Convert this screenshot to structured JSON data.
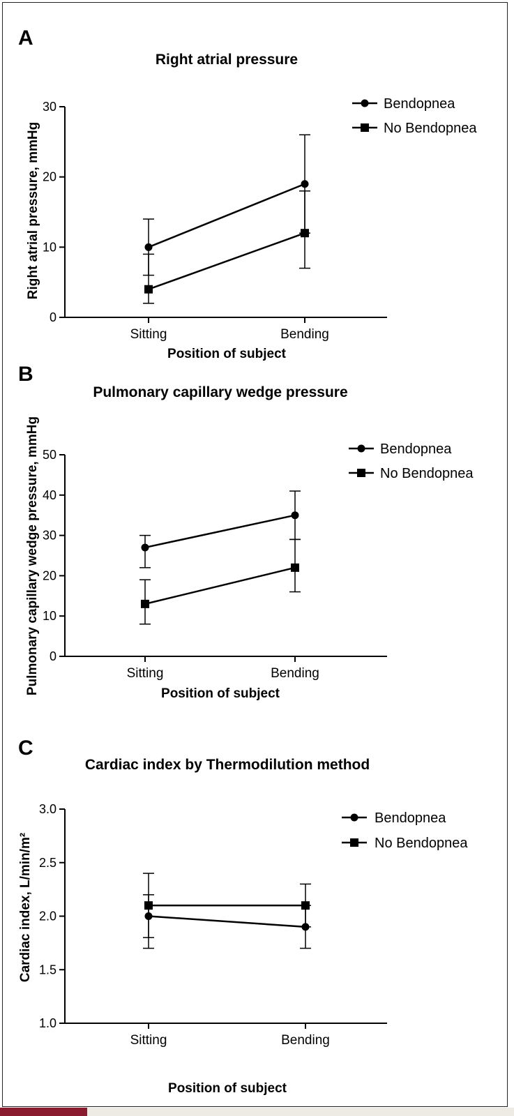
{
  "colors": {
    "line": "#000000",
    "accent_bar": "#8a1a2e",
    "footer_bar": "#eeeae4"
  },
  "chart_data": [
    {
      "type": "line",
      "panel": "A",
      "title": "Right atrial pressure",
      "xlabel": "Position of subject",
      "ylabel": "Right atrial pressure, mmHg",
      "categories": [
        "Sitting",
        "Bending"
      ],
      "ylim": [
        0,
        30
      ],
      "yticks": [
        "0",
        "10",
        "20",
        "30"
      ],
      "legend_position": "top-right",
      "grid": false,
      "series": [
        {
          "name": "Bendopnea",
          "marker": "circle",
          "values": [
            10,
            19
          ],
          "err_low": [
            6,
            12
          ],
          "err_high": [
            14,
            26
          ]
        },
        {
          "name": "No Bendopnea",
          "marker": "square",
          "values": [
            4,
            12
          ],
          "err_low": [
            2,
            7
          ],
          "err_high": [
            9,
            18
          ]
        }
      ]
    },
    {
      "type": "line",
      "panel": "B",
      "title": "Pulmonary capillary wedge pressure",
      "xlabel": "Position of subject",
      "ylabel": "Pulmonary capillary wedge pressure, mmHg",
      "categories": [
        "Sitting",
        "Bending"
      ],
      "ylim": [
        0,
        50
      ],
      "yticks": [
        "0",
        "10",
        "20",
        "30",
        "40",
        "50"
      ],
      "legend_position": "top-right",
      "grid": false,
      "series": [
        {
          "name": "Bendopnea",
          "marker": "circle",
          "values": [
            27,
            35
          ],
          "err_low": [
            22,
            29
          ],
          "err_high": [
            30,
            41
          ]
        },
        {
          "name": "No Bendopnea",
          "marker": "square",
          "values": [
            13,
            22
          ],
          "err_low": [
            8,
            16
          ],
          "err_high": [
            19,
            29
          ]
        }
      ]
    },
    {
      "type": "line",
      "panel": "C",
      "title": "Cardiac index by Thermodilution method",
      "xlabel": "Position of subject",
      "ylabel": "Cardiac index, L/min/m²",
      "categories": [
        "Sitting",
        "Bending"
      ],
      "ylim": [
        1.0,
        3.0
      ],
      "yticks": [
        "1.0",
        "1.5",
        "2.0",
        "2.5",
        "3.0"
      ],
      "legend_position": "top-right",
      "grid": false,
      "series": [
        {
          "name": "Bendopnea",
          "marker": "circle",
          "values": [
            2.0,
            1.9
          ],
          "err_low": [
            1.7,
            1.7
          ],
          "err_high": [
            2.2,
            2.1
          ]
        },
        {
          "name": "No Bendopnea",
          "marker": "square",
          "values": [
            2.1,
            2.1
          ],
          "err_low": [
            1.8,
            1.9
          ],
          "err_high": [
            2.4,
            2.3
          ]
        }
      ]
    }
  ]
}
